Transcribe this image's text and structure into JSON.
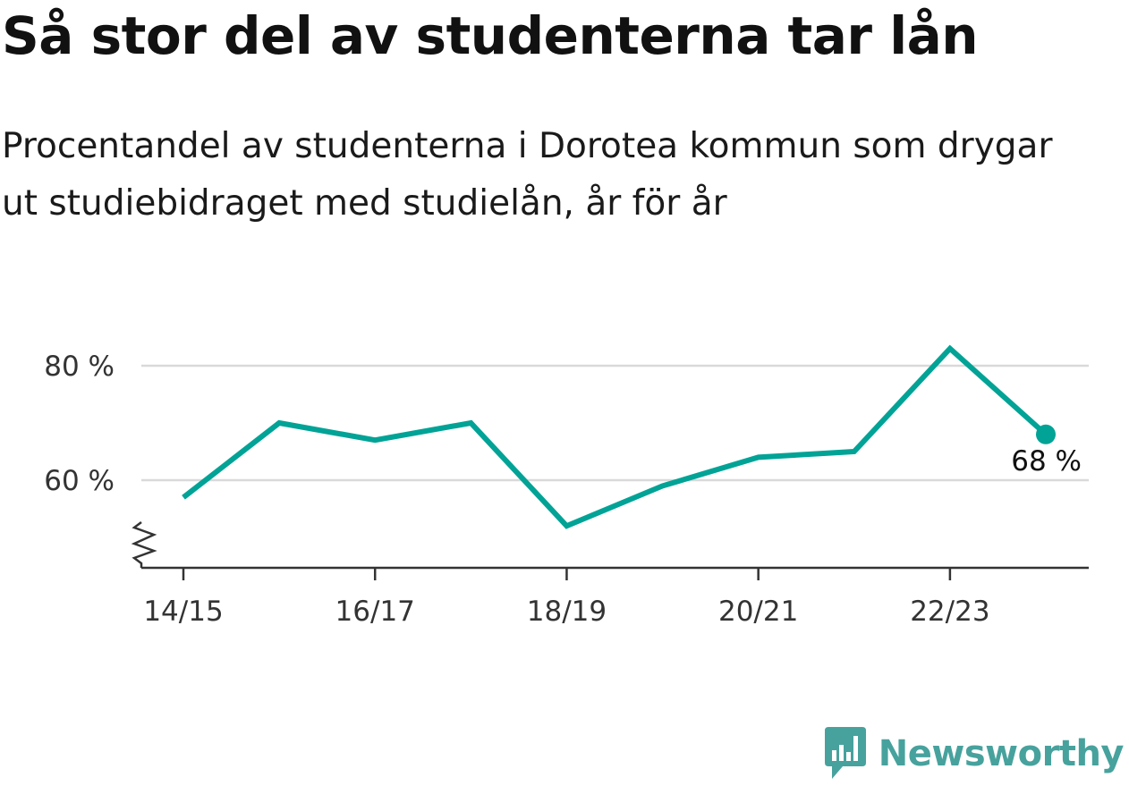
{
  "title": "Så stor del av studenterna tar lån",
  "subtitle": "Procentandel av studenterna i Dorotea kommun som drygar ut studiebidraget med studielån, år för år",
  "brand": {
    "name": "Newsworthy",
    "logo_icon": "newsworthy-bar-chart-bubble-icon",
    "color": "#47a29d"
  },
  "chart_data": {
    "type": "line",
    "x": [
      "14/15",
      "15/16",
      "16/17",
      "17/18",
      "18/19",
      "19/20",
      "20/21",
      "21/22",
      "22/23",
      "23/24"
    ],
    "x_tick_labels": [
      "14/15",
      "16/17",
      "18/19",
      "20/21",
      "22/23"
    ],
    "series": [
      {
        "values": [
          57,
          70,
          67,
          70,
          52,
          59,
          64,
          65,
          83,
          68
        ],
        "color": "#00a396"
      }
    ],
    "y_ticks": [
      60,
      80
    ],
    "y_tick_labels": [
      "60 %",
      "80 %"
    ],
    "ylim": [
      45,
      86
    ],
    "grid": true,
    "axis_break": true,
    "end_label": "68 %"
  }
}
